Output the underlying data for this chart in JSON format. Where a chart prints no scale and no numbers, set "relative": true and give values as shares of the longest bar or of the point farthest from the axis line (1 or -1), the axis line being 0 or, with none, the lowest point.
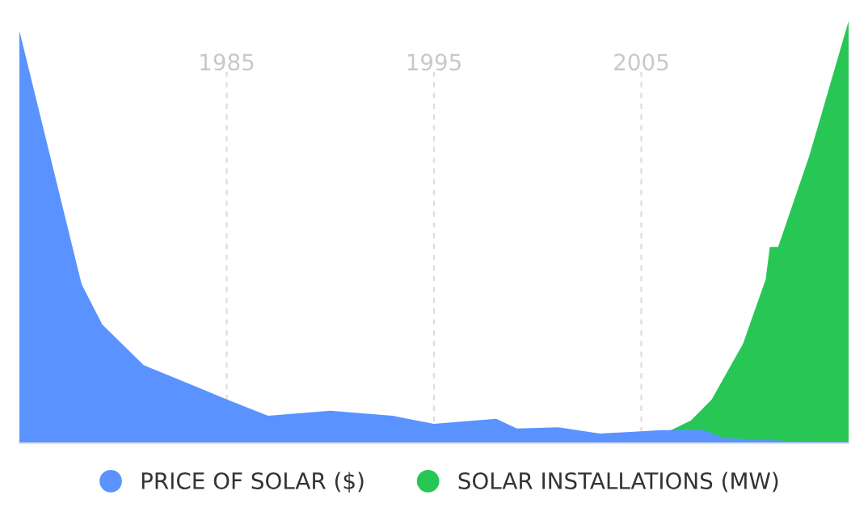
{
  "chart_data": {
    "type": "area",
    "relative": true,
    "xlim": [
      1975,
      2015
    ],
    "xticks": [
      1985,
      1995,
      2005
    ],
    "grid": "x",
    "legend": "bottom",
    "tick_labels": "x",
    "series": [
      {
        "name": "PRICE OF SOLAR ($)",
        "color": "#5a93ff",
        "x": [
          1975,
          1978,
          1979,
          1981,
          1985,
          1987,
          1990,
          1993,
          1995,
          1998,
          1999,
          2001,
          2003,
          2006,
          2008,
          2009,
          2013,
          2015
        ],
        "values": [
          0.977,
          0.377,
          0.281,
          0.185,
          0.104,
          0.065,
          0.077,
          0.065,
          0.046,
          0.058,
          0.035,
          0.038,
          0.023,
          0.031,
          0.031,
          0.012,
          0.004,
          0.004
        ]
      },
      {
        "name": "SOLAR INSTALLATIONS (MW)",
        "color": "#28c755",
        "x": [
          1995,
          2005,
          2006.6,
          2007.4,
          2008.4,
          2009.9,
          2011,
          2011.2,
          2011.6,
          2013.1,
          2015
        ],
        "values": [
          0,
          0,
          0.035,
          0.054,
          0.104,
          0.235,
          0.388,
          0.465,
          0.465,
          0.68,
          1.0
        ]
      }
    ]
  }
}
